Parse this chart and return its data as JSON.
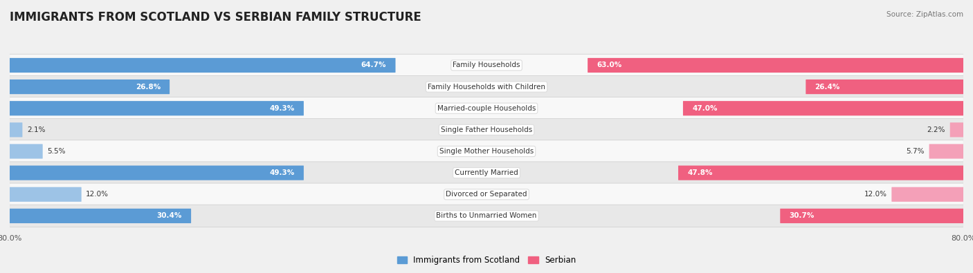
{
  "title": "IMMIGRANTS FROM SCOTLAND VS SERBIAN FAMILY STRUCTURE",
  "source": "Source: ZipAtlas.com",
  "categories": [
    "Family Households",
    "Family Households with Children",
    "Married-couple Households",
    "Single Father Households",
    "Single Mother Households",
    "Currently Married",
    "Divorced or Separated",
    "Births to Unmarried Women"
  ],
  "scotland_values": [
    64.7,
    26.8,
    49.3,
    2.1,
    5.5,
    49.3,
    12.0,
    30.4
  ],
  "serbian_values": [
    63.0,
    26.4,
    47.0,
    2.2,
    5.7,
    47.8,
    12.0,
    30.7
  ],
  "scotland_color_strong": "#5b9bd5",
  "scotland_color_light": "#9dc3e6",
  "serbian_color_strong": "#f06080",
  "serbian_color_light": "#f4a0b8",
  "axis_max": 80.0,
  "background_color": "#f0f0f0",
  "row_bg_even": "#f8f8f8",
  "row_bg_odd": "#e8e8e8",
  "legend_label_scotland": "Immigrants from Scotland",
  "legend_label_serbian": "Serbian",
  "title_fontsize": 12,
  "label_fontsize": 7.5,
  "value_fontsize": 7.5,
  "axis_label_fontsize": 8,
  "strong_threshold": 20
}
